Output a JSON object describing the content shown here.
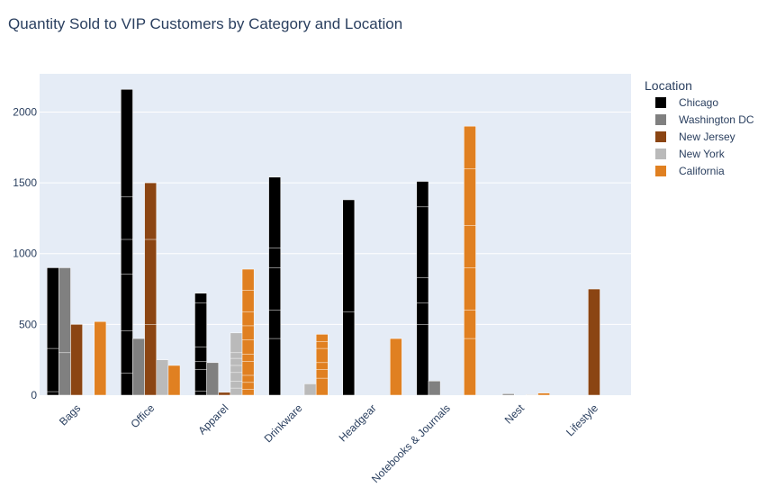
{
  "chart_data": {
    "type": "bar",
    "title": "Quantity Sold to VIP Customers by Category and Location",
    "xlabel": "",
    "ylabel": "",
    "categories": [
      "Bags",
      "Office",
      "Apparel",
      "Drinkware",
      "Headgear",
      "Notebooks & Journals",
      "Nest",
      "Lifestyle"
    ],
    "ylim": [
      0,
      2270
    ],
    "yticks": [
      0,
      500,
      1000,
      1500,
      2000
    ],
    "grid": true,
    "legend": {
      "title": "Location",
      "placement": "right"
    },
    "series": [
      {
        "name": "Chicago",
        "color": "#000000",
        "values": [
          900,
          2160,
          720,
          1540,
          1380,
          1510,
          0,
          0
        ],
        "segments": [
          [
            25,
            330,
            900
          ],
          [
            155,
            455,
            855,
            1100,
            1400,
            2160
          ],
          [
            30,
            180,
            240,
            340,
            650,
            720
          ],
          [
            400,
            600,
            900,
            1040,
            1540
          ],
          [
            590,
            1380
          ],
          [
            500,
            650,
            830,
            1330,
            1510
          ],
          [],
          []
        ]
      },
      {
        "name": "Washington DC",
        "color": "#808080",
        "values": [
          900,
          400,
          230,
          0,
          0,
          100,
          10,
          0
        ],
        "segments": [
          [
            300,
            900
          ],
          [
            400
          ],
          [
            230
          ],
          [],
          [],
          [
            100
          ],
          [
            10
          ],
          []
        ]
      },
      {
        "name": "New Jersey",
        "color": "#8b4513",
        "values": [
          500,
          1500,
          20,
          0,
          0,
          0,
          0,
          750
        ],
        "segments": [
          [
            500
          ],
          [
            500,
            1100,
            1500
          ],
          [
            20
          ],
          [],
          [],
          [],
          [],
          [
            750
          ]
        ]
      },
      {
        "name": "New York",
        "color": "#bababa",
        "values": [
          0,
          250,
          440,
          80,
          0,
          0,
          5,
          0
        ],
        "segments": [
          [],
          [
            250
          ],
          [
            50,
            100,
            160,
            210,
            260,
            300,
            440
          ],
          [
            80
          ],
          [],
          [],
          [
            5
          ],
          []
        ]
      },
      {
        "name": "California",
        "color": "#e08021",
        "values": [
          520,
          210,
          890,
          430,
          400,
          1900,
          15,
          0
        ],
        "segments": [
          [
            520
          ],
          [
            210
          ],
          [
            40,
            90,
            140,
            240,
            290,
            390,
            490,
            590,
            740,
            890
          ],
          [
            120,
            180,
            230,
            330,
            380,
            430
          ],
          [
            400
          ],
          [
            400,
            600,
            900,
            1200,
            1600,
            1900
          ],
          [
            15
          ],
          []
        ]
      }
    ]
  }
}
